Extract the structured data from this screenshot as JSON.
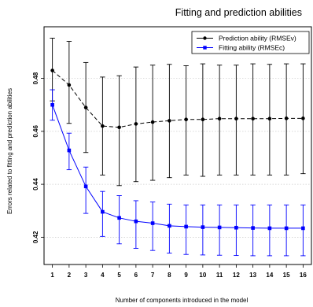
{
  "chart_data": {
    "type": "line",
    "title": "Fitting and prediction abilities",
    "xlabel": "Number of components introduced in the model",
    "ylabel": "Errors related to fitting and prediction abilities",
    "x": [
      1,
      2,
      3,
      4,
      5,
      6,
      7,
      8,
      9,
      10,
      11,
      12,
      13,
      14,
      15,
      16
    ],
    "xlim": [
      0.5,
      16.5
    ],
    "ylim": [
      0.4097,
      0.4995
    ],
    "yticks": [
      0.42,
      0.44,
      0.46,
      0.48
    ],
    "ytick_labels": [
      "0.42",
      "0.44",
      "0.46",
      "0.48"
    ],
    "grid": true,
    "legend_position": "top-right",
    "series": [
      {
        "name": "Prediction ability (RMSEv)",
        "color": "#000000",
        "line_style": "dashed",
        "marker": "circle",
        "values": [
          0.483,
          0.4775,
          0.469,
          0.462,
          0.4615,
          0.4628,
          0.4635,
          0.464,
          0.4645,
          0.4645,
          0.4648,
          0.4648,
          0.4648,
          0.4648,
          0.4649,
          0.4649
        ],
        "error_low": [
          0.4715,
          0.463,
          0.452,
          0.4435,
          0.4395,
          0.441,
          0.4415,
          0.4425,
          0.4435,
          0.443,
          0.4435,
          0.4435,
          0.4435,
          0.4435,
          0.4435,
          0.444
        ],
        "error_high": [
          0.4952,
          0.494,
          0.486,
          0.4805,
          0.481,
          0.4843,
          0.485,
          0.4853,
          0.4848,
          0.4855,
          0.485,
          0.485,
          0.4855,
          0.4853,
          0.4855,
          0.4855
        ]
      },
      {
        "name": "Fitting ability (RMSEc)",
        "color": "#0000ff",
        "line_style": "solid",
        "marker": "square",
        "values": [
          0.47,
          0.4528,
          0.4392,
          0.4296,
          0.4273,
          0.426,
          0.4253,
          0.4243,
          0.424,
          0.4238,
          0.4237,
          0.4236,
          0.4235,
          0.4234,
          0.4234,
          0.4234
        ],
        "error_low": [
          0.4642,
          0.4455,
          0.429,
          0.4203,
          0.4175,
          0.4158,
          0.415,
          0.414,
          0.4135,
          0.4133,
          0.4132,
          0.4131,
          0.413,
          0.413,
          0.413,
          0.413
        ],
        "error_high": [
          0.4757,
          0.4593,
          0.4465,
          0.4373,
          0.4357,
          0.4338,
          0.4333,
          0.4325,
          0.4322,
          0.4322,
          0.4322,
          0.4322,
          0.4322,
          0.4322,
          0.4322,
          0.4322
        ]
      }
    ]
  }
}
